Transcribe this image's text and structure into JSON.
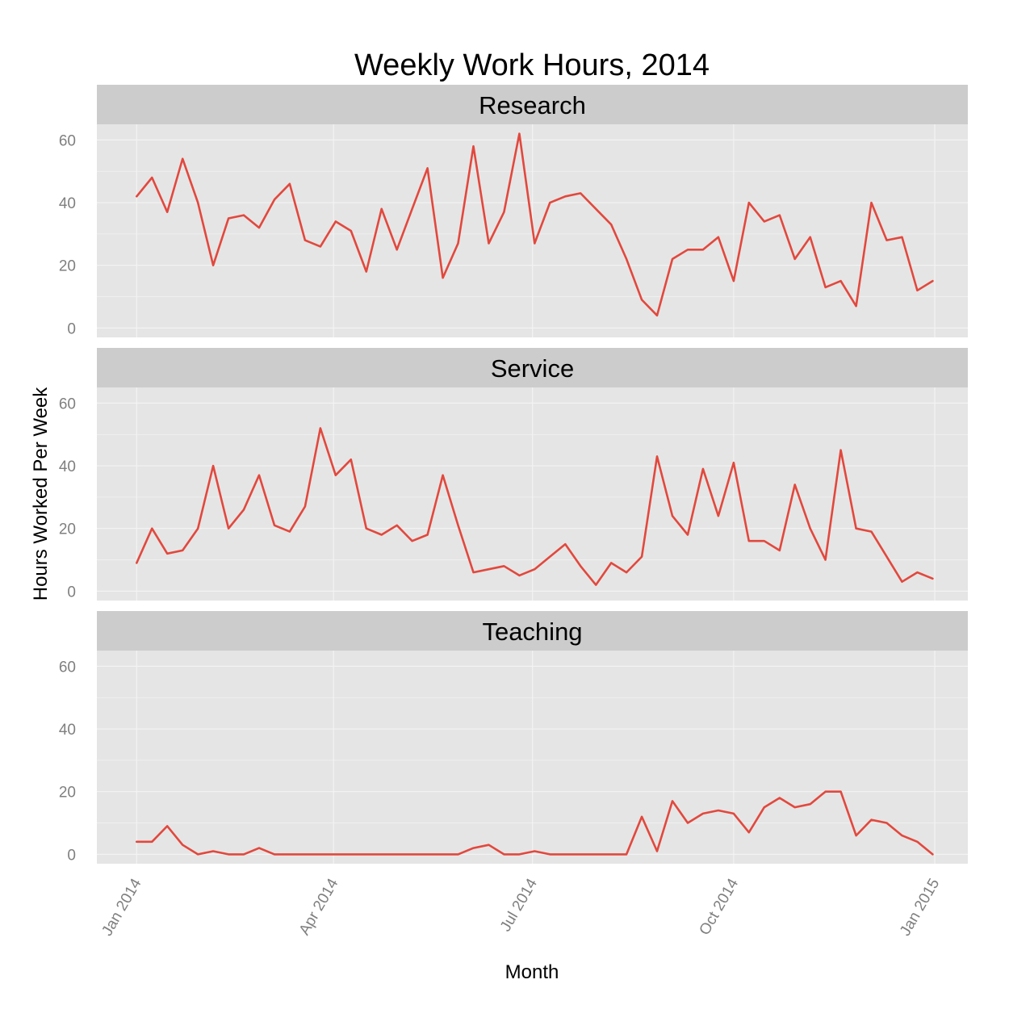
{
  "chart_data": {
    "type": "line",
    "title": "Weekly Work Hours, 2014",
    "xlabel": "Month",
    "ylabel": "Hours Worked Per Week",
    "ylim": [
      -3,
      65
    ],
    "y_ticks": [
      0,
      20,
      40,
      60
    ],
    "x_ticks": [
      {
        "label": "Jan 2014",
        "week": 0
      },
      {
        "label": "Apr 2014",
        "week": 12.86
      },
      {
        "label": "Jul 2014",
        "week": 25.86
      },
      {
        "label": "Oct 2014",
        "week": 39
      },
      {
        "label": "Jan 2015",
        "week": 52.14
      }
    ],
    "xlim": [
      -2.6,
      54.3
    ],
    "line_color": "#e2483d",
    "panel_background": "#e5e5e5",
    "strip_background": "#cccccc",
    "grid_color": "#f3f3f3",
    "panels": [
      {
        "name": "Research",
        "values": [
          42,
          48,
          37,
          54,
          40,
          20,
          35,
          36,
          32,
          41,
          46,
          28,
          26,
          34,
          31,
          18,
          38,
          25,
          38,
          51,
          16,
          27,
          58,
          27,
          37,
          62,
          27,
          40,
          42,
          43,
          38,
          33,
          22,
          9,
          4,
          22,
          25,
          25,
          29,
          15,
          40,
          34,
          36,
          22,
          29,
          13,
          15,
          7,
          40,
          28,
          29,
          12,
          15
        ]
      },
      {
        "name": "Service",
        "values": [
          9,
          20,
          12,
          13,
          20,
          40,
          20,
          26,
          37,
          21,
          19,
          27,
          52,
          37,
          42,
          20,
          18,
          21,
          16,
          18,
          37,
          21,
          6,
          7,
          8,
          5,
          7,
          11,
          15,
          8,
          2,
          9,
          6,
          11,
          43,
          24,
          18,
          39,
          24,
          41,
          16,
          16,
          13,
          34,
          20,
          10,
          45,
          20,
          19,
          11,
          3,
          6,
          4
        ]
      },
      {
        "name": "Teaching",
        "values": [
          4,
          4,
          9,
          3,
          0,
          1,
          0,
          0,
          2,
          0,
          0,
          0,
          0,
          0,
          0,
          0,
          0,
          0,
          0,
          0,
          0,
          0,
          2,
          3,
          0,
          0,
          1,
          0,
          0,
          0,
          0,
          0,
          0,
          12,
          1,
          17,
          10,
          13,
          14,
          13,
          7,
          15,
          18,
          15,
          16,
          20,
          20,
          6,
          11,
          10,
          6,
          4,
          0
        ]
      }
    ]
  }
}
